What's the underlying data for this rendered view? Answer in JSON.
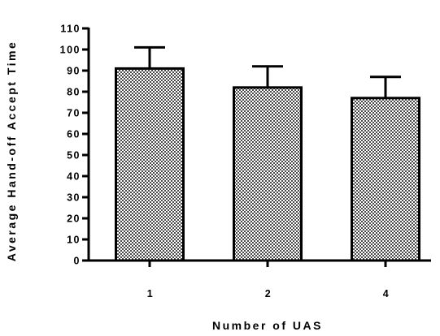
{
  "chart_data": {
    "type": "bar",
    "title": "",
    "xlabel": "Number of UAS",
    "ylabel": "Average Hand-off Accept Time",
    "categories": [
      "1",
      "2",
      "4"
    ],
    "values": [
      91,
      82,
      77
    ],
    "error_upper": [
      10,
      10,
      10
    ],
    "ylim": [
      0,
      110
    ],
    "yticks": [
      0,
      10,
      20,
      30,
      40,
      50,
      60,
      70,
      80,
      90,
      100,
      110
    ],
    "bar_fill_pattern": "checkerboard",
    "colors": {
      "bar_fill_dark": "#4a4a4a",
      "bar_fill_light": "#ffffff",
      "bar_outline": "#000000",
      "axis": "#000000"
    },
    "grid": false,
    "legend": "none"
  }
}
